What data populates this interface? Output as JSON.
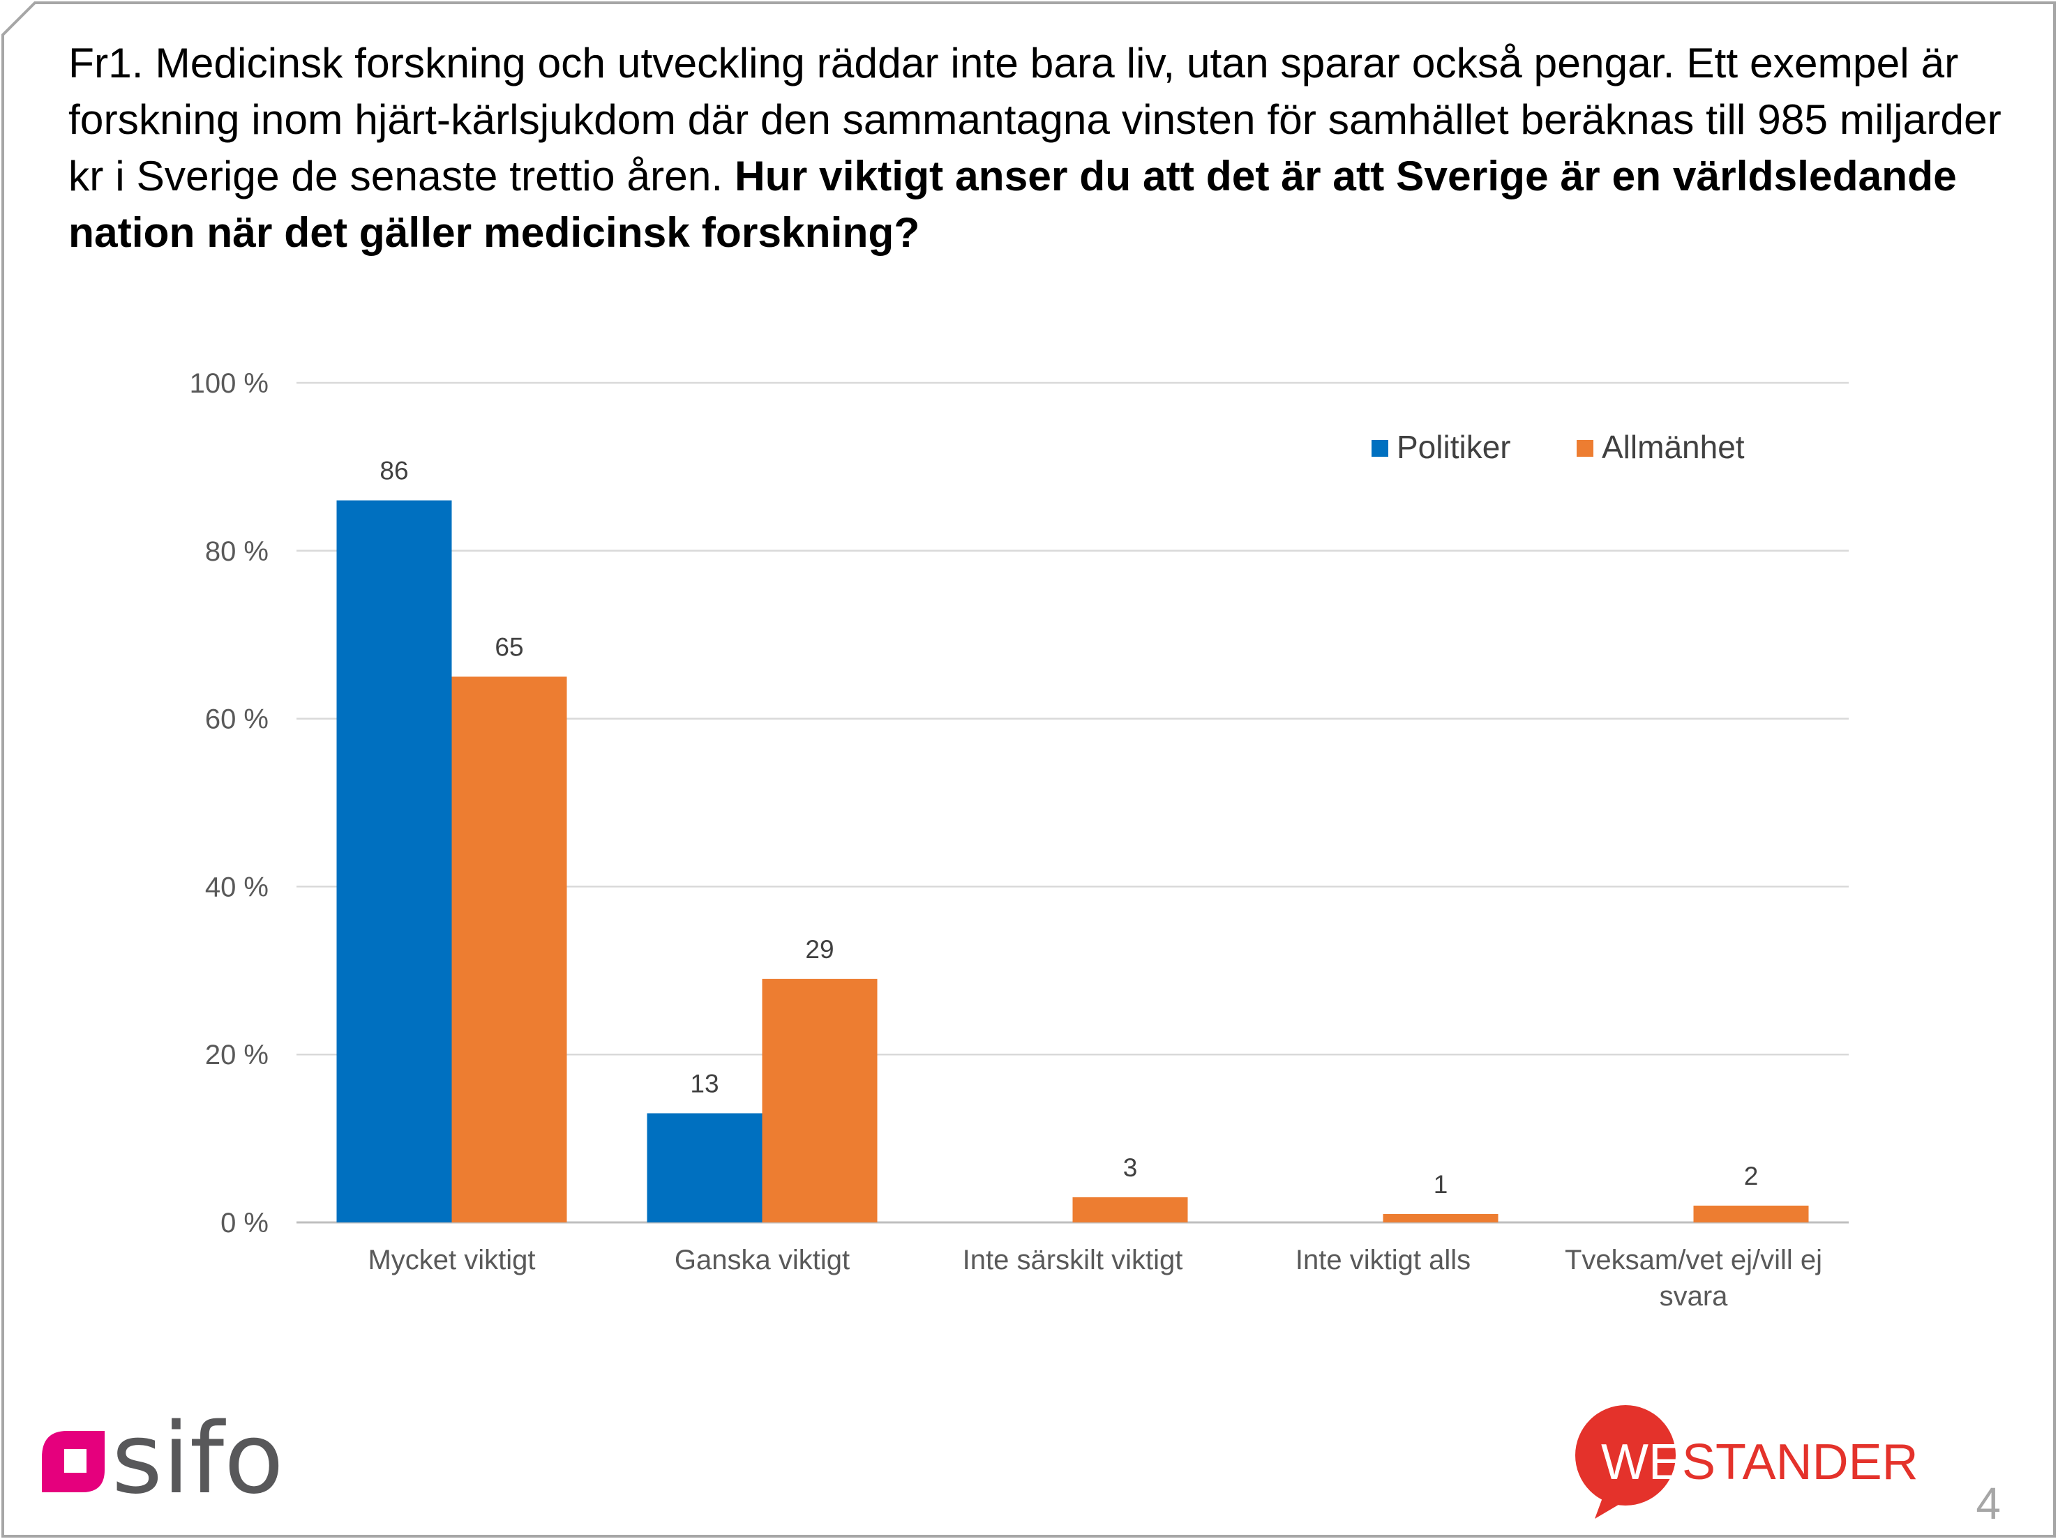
{
  "question": {
    "intro": "Fr1. Medicinsk forskning och utveckling räddar inte bara liv, utan sparar också pengar. Ett exempel är forskning inom hjärt-kärlsjukdom där den sammantagna vinsten för samhället beräknas till 985 miljarder kr i Sverige de senaste trettio åren. ",
    "emphasis": "Hur viktigt anser du att det är att Sverige är en världsledande nation när det gäller medicinsk forskning?"
  },
  "chart_data": {
    "type": "bar",
    "categories": [
      [
        "Mycket viktigt"
      ],
      [
        "Ganska viktigt"
      ],
      [
        "Inte särskilt viktigt"
      ],
      [
        "Inte viktigt alls"
      ],
      [
        "Tveksam/vet ej/vill ej",
        "svara"
      ]
    ],
    "series": [
      {
        "name": "Politiker",
        "color": "#0070C0",
        "values": [
          86,
          13,
          null,
          null,
          null
        ]
      },
      {
        "name": "Allmänhet",
        "color": "#ED7D31",
        "values": [
          65,
          29,
          3,
          1,
          2
        ]
      }
    ],
    "ylim": [
      0,
      100
    ],
    "yticks": [
      0,
      20,
      40,
      60,
      80,
      100
    ],
    "ytick_labels": [
      "0 %",
      "20 %",
      "40 %",
      "60 %",
      "80 %",
      "100 %"
    ],
    "grid": true,
    "legend_position": "top-right"
  },
  "branding": {
    "left_logo": "sifo",
    "right_logo": "WESTANDER",
    "right_logo_first": "WE",
    "right_logo_rest": "STANDER",
    "brand_colors": {
      "sifo_magenta": "#E5007D",
      "westander_red": "#E4322B"
    }
  },
  "page_number": "4"
}
